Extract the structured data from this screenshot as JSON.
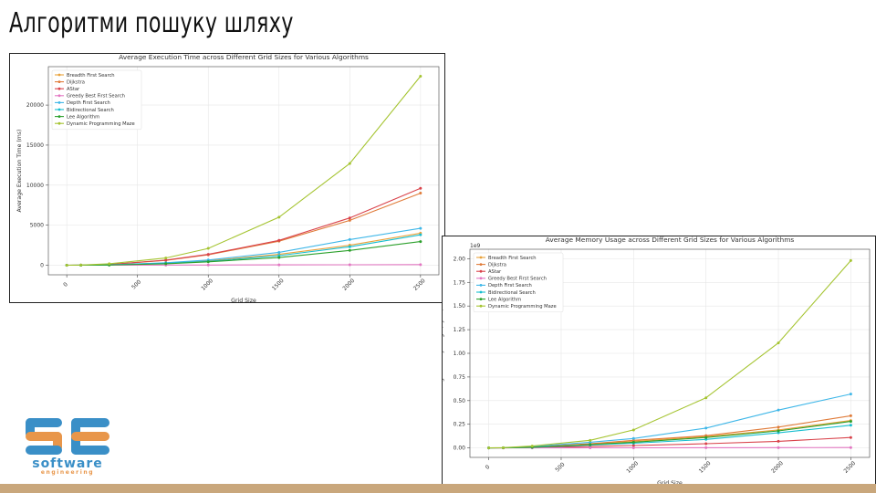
{
  "slide": {
    "title": "Алгоритми пошуку шляху"
  },
  "logo": {
    "letters": "SE",
    "word": "software",
    "sub": "engineering",
    "colors": {
      "blue": "#3a8fc7",
      "orange": "#e8964a"
    }
  },
  "chart_data": [
    {
      "type": "line",
      "title": "Average Execution Time across Different Grid Sizes for Various Algorithms",
      "xlabel": "Grid Size",
      "ylabel": "Average Execution Time (ms)",
      "exponent_label": "",
      "x": [
        0,
        100,
        300,
        700,
        1000,
        1500,
        2000,
        2500
      ],
      "xlim": [
        -130,
        2630
      ],
      "ylim": [
        -1200,
        24800
      ],
      "xticks": [
        0,
        500,
        1000,
        1500,
        2000,
        2500
      ],
      "yticks": [
        0,
        5000,
        10000,
        15000,
        20000
      ],
      "ytick_labels": [
        "0",
        "5000",
        "10000",
        "15000",
        "20000"
      ],
      "grid": true,
      "legend": "top-left",
      "series": [
        {
          "name": "Breadth First Search",
          "color": "#e9a23b",
          "values": [
            0,
            5,
            40,
            240,
            550,
            1350,
            2500,
            4000
          ]
        },
        {
          "name": "Dijkstra",
          "color": "#e07b39",
          "values": [
            0,
            10,
            80,
            600,
            1300,
            3000,
            5600,
            9000
          ]
        },
        {
          "name": "AStar",
          "color": "#d9434b",
          "values": [
            0,
            10,
            90,
            640,
            1350,
            3100,
            5900,
            9600
          ]
        },
        {
          "name": "Greedy Best First Search",
          "color": "#e377c2",
          "values": [
            0,
            1,
            5,
            15,
            25,
            40,
            55,
            75
          ]
        },
        {
          "name": "Depth First Search",
          "color": "#3fb7e8",
          "values": [
            0,
            5,
            40,
            300,
            650,
            1600,
            3200,
            4600
          ]
        },
        {
          "name": "Bidirectional Search",
          "color": "#17becf",
          "values": [
            0,
            5,
            30,
            220,
            480,
            1200,
            2300,
            3800
          ]
        },
        {
          "name": "Lee Algorithm",
          "color": "#2ca02c",
          "values": [
            0,
            3,
            25,
            180,
            420,
            950,
            1850,
            2950
          ]
        },
        {
          "name": "Dynamic Programming Maze",
          "color": "#a5c431",
          "values": [
            0,
            20,
            180,
            900,
            2100,
            6000,
            12700,
            23600
          ]
        }
      ]
    },
    {
      "type": "line",
      "title": "Average Memory Usage across Different Grid Sizes for Various Algorithms",
      "xlabel": "Grid Size",
      "ylabel": "Average Memory Usage (bytes)",
      "exponent_label": "1e9",
      "x": [
        0,
        100,
        300,
        700,
        1000,
        1500,
        2000,
        2500
      ],
      "xlim": [
        -130,
        2630
      ],
      "ylim": [
        -0.1,
        2.1
      ],
      "xticks": [
        0,
        500,
        1000,
        1500,
        2000,
        2500
      ],
      "yticks": [
        0,
        0.25,
        0.5,
        0.75,
        1.0,
        1.25,
        1.5,
        1.75,
        2.0
      ],
      "ytick_labels": [
        "0.00",
        "0.25",
        "0.50",
        "0.75",
        "1.00",
        "1.25",
        "1.50",
        "1.75",
        "2.00"
      ],
      "grid": true,
      "legend": "top-left",
      "series": [
        {
          "name": "Breadth First Search",
          "color": "#e9a23b",
          "values": [
            0,
            0.001,
            0.008,
            0.04,
            0.07,
            0.12,
            0.19,
            0.29
          ]
        },
        {
          "name": "Dijkstra",
          "color": "#e07b39",
          "values": [
            0,
            0.001,
            0.009,
            0.045,
            0.08,
            0.13,
            0.22,
            0.34
          ]
        },
        {
          "name": "AStar",
          "color": "#d9434b",
          "values": [
            0,
            0.0005,
            0.004,
            0.015,
            0.025,
            0.045,
            0.07,
            0.11
          ]
        },
        {
          "name": "Greedy Best First Search",
          "color": "#e377c2",
          "values": [
            0,
            0.0001,
            0.0005,
            0.001,
            0.0015,
            0.002,
            0.003,
            0.004
          ]
        },
        {
          "name": "Depth First Search",
          "color": "#3fb7e8",
          "values": [
            0,
            0.002,
            0.015,
            0.06,
            0.1,
            0.21,
            0.4,
            0.57
          ]
        },
        {
          "name": "Bidirectional Search",
          "color": "#17becf",
          "values": [
            0,
            0.001,
            0.006,
            0.03,
            0.05,
            0.09,
            0.16,
            0.24
          ]
        },
        {
          "name": "Lee Algorithm",
          "color": "#2ca02c",
          "values": [
            0,
            0.001,
            0.007,
            0.035,
            0.06,
            0.11,
            0.18,
            0.28
          ]
        },
        {
          "name": "Dynamic Programming Maze",
          "color": "#a5c431",
          "values": [
            0,
            0.003,
            0.02,
            0.08,
            0.19,
            0.53,
            1.11,
            1.98
          ]
        }
      ]
    }
  ]
}
